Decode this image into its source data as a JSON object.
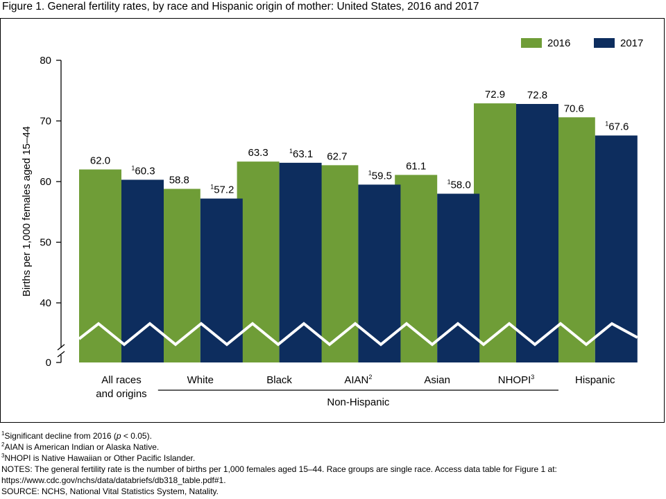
{
  "figure_title": "Figure 1. General fertility rates, by race and Hispanic origin of mother: United States, 2016 and 2017",
  "colors": {
    "series_2016": "#6f9d37",
    "series_2017": "#0d2d5e",
    "axis": "#000000",
    "break_line": "#ffffff"
  },
  "chart_data": {
    "type": "bar",
    "title": "",
    "ylabel": "Births per 1,000 females aged 15–44",
    "xlabel": "",
    "ylim": [
      0,
      80
    ],
    "axis_break": true,
    "broken_range": [
      0,
      30
    ],
    "yticks": [
      {
        "value": 0,
        "label": "0"
      },
      {
        "value": 40,
        "label": "40"
      },
      {
        "value": 50,
        "label": "50"
      },
      {
        "value": 60,
        "label": "60"
      },
      {
        "value": 70,
        "label": "70"
      },
      {
        "value": 80,
        "label": "80"
      }
    ],
    "legend_placement": "top-right",
    "grid": false,
    "categories": [
      {
        "label_lines": [
          "All races",
          "and origins"
        ],
        "sup": ""
      },
      {
        "label_lines": [
          "White"
        ],
        "sup": ""
      },
      {
        "label_lines": [
          "Black"
        ],
        "sup": ""
      },
      {
        "label_lines": [
          "AIAN"
        ],
        "sup": "2"
      },
      {
        "label_lines": [
          "Asian"
        ],
        "sup": ""
      },
      {
        "label_lines": [
          "NHOPI"
        ],
        "sup": "3"
      },
      {
        "label_lines": [
          "Hispanic"
        ],
        "sup": ""
      }
    ],
    "group_label": {
      "text": "Non-Hispanic",
      "from_category": 1,
      "to_category": 5
    },
    "series": [
      {
        "name": "2016",
        "values": [
          62.0,
          58.8,
          63.3,
          62.7,
          61.1,
          72.9,
          70.6
        ],
        "labels": [
          "62.0",
          "58.8",
          "63.3",
          "62.7",
          "61.1",
          "72.9",
          "70.6"
        ],
        "marks": [
          "",
          "",
          "",
          "",
          "",
          "",
          ""
        ]
      },
      {
        "name": "2017",
        "values": [
          60.3,
          57.2,
          63.1,
          59.5,
          58.0,
          72.8,
          67.6
        ],
        "labels": [
          "60.3",
          "57.2",
          "63.1",
          "59.5",
          "58.0",
          "72.8",
          "67.6"
        ],
        "marks": [
          "1",
          "1",
          "1",
          "1",
          "1",
          "",
          "1"
        ]
      }
    ]
  },
  "footnotes": {
    "note1_sup": "1",
    "note1_pre": "Significant decline from 2016 (",
    "note1_p": "p",
    "note1_post": " < 0.05).",
    "note2_sup": "2",
    "note2_text": "AIAN is American Indian or Alaska Native.",
    "note3_sup": "3",
    "note3_text": "NHOPI is Native Hawaiian or Other Pacific Islander.",
    "notes_line1": "NOTES: The general fertility rate is the number of births per 1,000 females aged 15–44. Race groups are single race. Access data table for Figure 1 at:",
    "notes_line2": "https://www.cdc.gov/nchs/data/databriefs/db318_table.pdf#1.",
    "source": "SOURCE: NCHS, National Vital Statistics System, Natality."
  }
}
